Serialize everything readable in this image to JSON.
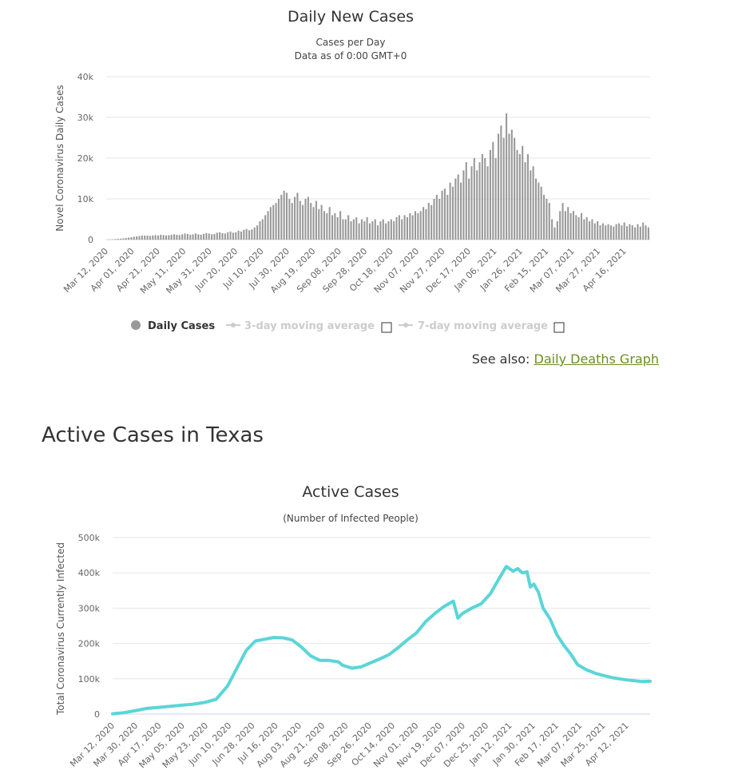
{
  "daily_chart": {
    "title": "Daily New Cases",
    "subtitle_line1": "Cases per Day",
    "subtitle_line2": "Data as of 0:00 GMT+0",
    "ylabel": "Novel Coronavirus Daily Cases",
    "legend": {
      "daily": "Daily Cases",
      "ma3": "3-day moving average",
      "ma7": "7-day moving average"
    }
  },
  "see_also": {
    "label": "See also:",
    "link": "Daily Deaths Graph"
  },
  "section_title": "Active Cases in Texas",
  "active_chart": {
    "title": "Active Cases",
    "subtitle": "(Number of Infected People)",
    "ylabel": "Total Coronavirus Currently Infected"
  },
  "colors": {
    "bars": "#999999",
    "line": "#5bd5d8",
    "link": "#6b8e23",
    "grid": "#e6e6e6"
  },
  "chart_data": [
    {
      "type": "bar",
      "title": "Daily New Cases",
      "ylabel": "Novel Coronavirus Daily Cases",
      "ylim": [
        0,
        40000
      ],
      "yticks": [
        "0",
        "10k",
        "20k",
        "30k",
        "40k"
      ],
      "x_tick_labels": [
        "Mar 12, 2020",
        "Apr 01, 2020",
        "Apr 21, 2020",
        "May 11, 2020",
        "May 31, 2020",
        "Jun 20, 2020",
        "Jul 10, 2020",
        "Jul 30, 2020",
        "Aug 19, 2020",
        "Sep 08, 2020",
        "Sep 28, 2020",
        "Oct 18, 2020",
        "Nov 07, 2020",
        "Nov 27, 2020",
        "Dec 17, 2020",
        "Jan 06, 2021",
        "Jan 26, 2021",
        "Feb 15, 2021",
        "Mar 07, 2021",
        "Mar 27, 2021",
        "Apr 16, 2021"
      ],
      "series": [
        {
          "name": "Daily Cases",
          "values": [
            10,
            40,
            80,
            150,
            200,
            250,
            300,
            400,
            500,
            600,
            700,
            800,
            900,
            1000,
            1000,
            1000,
            900,
            1000,
            1100,
            1000,
            1200,
            1100,
            1000,
            1100,
            1200,
            1300,
            1200,
            1100,
            1300,
            1500,
            1400,
            1200,
            1300,
            1500,
            1300,
            1200,
            1400,
            1600,
            1500,
            1300,
            1400,
            1700,
            1800,
            1600,
            1500,
            1800,
            2000,
            1700,
            1800,
            2200,
            2000,
            2400,
            2600,
            2300,
            2500,
            3000,
            3500,
            4500,
            5000,
            6000,
            7000,
            8000,
            8500,
            9000,
            10000,
            11000,
            12000,
            11500,
            10000,
            9000,
            10500,
            11500,
            9500,
            8500,
            10000,
            10500,
            9000,
            8000,
            9500,
            7500,
            8500,
            7000,
            6500,
            8000,
            6000,
            6500,
            5500,
            7000,
            5000,
            5000,
            6000,
            4500,
            5000,
            5500,
            4000,
            5000,
            4500,
            5500,
            4000,
            4500,
            5000,
            3500,
            4500,
            5000,
            4000,
            4500,
            5000,
            4500,
            5500,
            6000,
            5000,
            6000,
            5500,
            6500,
            6000,
            7000,
            6500,
            7000,
            8000,
            7500,
            9000,
            8500,
            10000,
            11000,
            10000,
            12000,
            12500,
            11000,
            14000,
            13000,
            15000,
            16000,
            14000,
            17000,
            19000,
            15000,
            18000,
            20000,
            17000,
            19000,
            21000,
            20000,
            18000,
            22000,
            24000,
            20000,
            26000,
            28000,
            25000,
            31000,
            26000,
            27000,
            25000,
            22000,
            21000,
            23000,
            19000,
            21000,
            17000,
            18000,
            15000,
            14000,
            13000,
            11000,
            10000,
            9000,
            5000,
            3000,
            4500,
            7000,
            9000,
            7000,
            8000,
            6500,
            7000,
            6000,
            5500,
            6500,
            5000,
            5500,
            4500,
            5000,
            4000,
            4500,
            3500,
            4000,
            3500,
            3800,
            3500,
            3200,
            3800,
            4000,
            3500,
            4200,
            3300,
            3800,
            3500,
            3000,
            3800,
            3200,
            4200,
            3500,
            3000
          ]
        }
      ]
    },
    {
      "type": "line",
      "title": "Active Cases",
      "subtitle": "(Number of Infected People)",
      "ylabel": "Total Coronavirus Currently Infected",
      "ylim": [
        0,
        500000
      ],
      "yticks": [
        "0",
        "100k",
        "200k",
        "300k",
        "400k",
        "500k"
      ],
      "x_tick_labels": [
        "Mar 12, 2020",
        "Mar 30, 2020",
        "Apr 17, 2020",
        "May 05, 2020",
        "May 23, 2020",
        "Jun 10, 2020",
        "Jun 28, 2020",
        "Jul 16, 2020",
        "Aug 03, 2020",
        "Aug 21, 2020",
        "Sep 08, 2020",
        "Sep 26, 2020",
        "Oct 14, 2020",
        "Nov 01, 2020",
        "Nov 19, 2020",
        "Dec 07, 2020",
        "Dec 25, 2020",
        "Jan 12, 2021",
        "Jan 30, 2021",
        "Feb 17, 2021",
        "Mar 07, 2021",
        "Mar 25, 2021",
        "Apr 12, 2021"
      ],
      "series": [
        {
          "name": "Currently Infected",
          "points": [
            [
              0,
              1000
            ],
            [
              10,
              4000
            ],
            [
              20,
              10000
            ],
            [
              30,
              16000
            ],
            [
              40,
              19000
            ],
            [
              50,
              22000
            ],
            [
              60,
              25000
            ],
            [
              70,
              28000
            ],
            [
              80,
              33000
            ],
            [
              90,
              42000
            ],
            [
              100,
              80000
            ],
            [
              108,
              130000
            ],
            [
              116,
              180000
            ],
            [
              124,
              207000
            ],
            [
              132,
              212000
            ],
            [
              140,
              217000
            ],
            [
              148,
              216000
            ],
            [
              156,
              210000
            ],
            [
              164,
              190000
            ],
            [
              172,
              165000
            ],
            [
              180,
              152000
            ],
            [
              188,
              152000
            ],
            [
              196,
              148000
            ],
            [
              200,
              138000
            ],
            [
              208,
              130000
            ],
            [
              216,
              134000
            ],
            [
              224,
              145000
            ],
            [
              232,
              156000
            ],
            [
              240,
              168000
            ],
            [
              248,
              188000
            ],
            [
              256,
              210000
            ],
            [
              264,
              230000
            ],
            [
              272,
              262000
            ],
            [
              280,
              285000
            ],
            [
              288,
              305000
            ],
            [
              296,
              320000
            ],
            [
              300,
              272000
            ],
            [
              304,
              285000
            ],
            [
              312,
              300000
            ],
            [
              320,
              312000
            ],
            [
              328,
              340000
            ],
            [
              336,
              385000
            ],
            [
              342,
              418000
            ],
            [
              348,
              405000
            ],
            [
              352,
              412000
            ],
            [
              356,
              400000
            ],
            [
              360,
              403000
            ],
            [
              363,
              360000
            ],
            [
              366,
              368000
            ],
            [
              370,
              345000
            ],
            [
              374,
              300000
            ],
            [
              380,
              270000
            ],
            [
              386,
              225000
            ],
            [
              392,
              195000
            ],
            [
              398,
              170000
            ],
            [
              404,
              140000
            ],
            [
              412,
              125000
            ],
            [
              420,
              115000
            ],
            [
              428,
              108000
            ],
            [
              436,
              102000
            ],
            [
              444,
              98000
            ],
            [
              452,
              95000
            ],
            [
              460,
              92000
            ],
            [
              467,
              93000
            ]
          ]
        }
      ]
    }
  ]
}
